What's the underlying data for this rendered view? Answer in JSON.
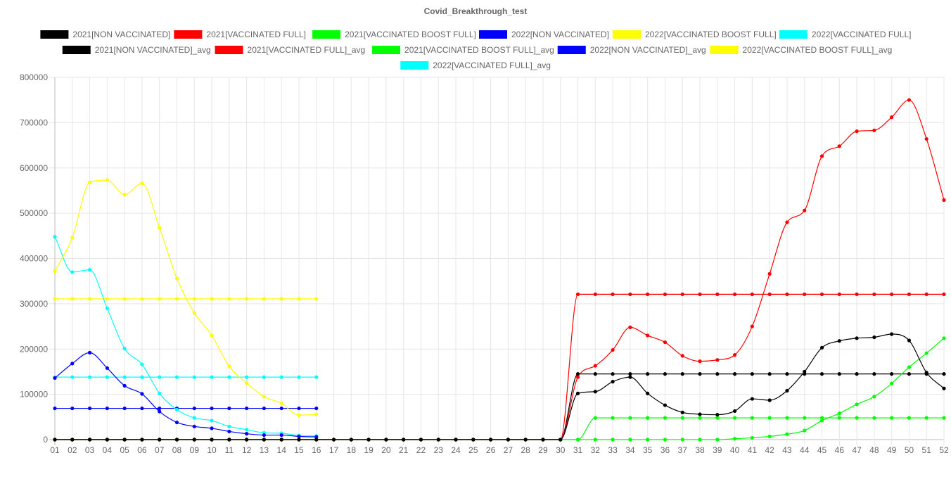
{
  "chart_data": {
    "type": "line",
    "title": "Covid_Breakthrough_test",
    "xlabel": "",
    "ylabel": "",
    "ylim": [
      0,
      800000
    ],
    "y_ticks": [
      "0",
      "100000",
      "200000",
      "300000",
      "400000",
      "500000",
      "600000",
      "700000",
      "800000"
    ],
    "categories": [
      "01",
      "02",
      "03",
      "04",
      "05",
      "06",
      "07",
      "08",
      "09",
      "10",
      "11",
      "12",
      "13",
      "14",
      "15",
      "16",
      "17",
      "18",
      "19",
      "20",
      "21",
      "22",
      "23",
      "24",
      "25",
      "26",
      "27",
      "28",
      "29",
      "30",
      "31",
      "32",
      "33",
      "34",
      "35",
      "36",
      "37",
      "38",
      "39",
      "40",
      "41",
      "42",
      "43",
      "44",
      "45",
      "46",
      "47",
      "48",
      "49",
      "50",
      "51",
      "52"
    ],
    "grid": true,
    "legend_position": "top",
    "series": [
      {
        "name": "2021[NON VACCINATED]",
        "color": "#000000",
        "values": [
          0,
          0,
          0,
          0,
          0,
          0,
          0,
          0,
          0,
          0,
          0,
          0,
          0,
          0,
          0,
          0,
          0,
          0,
          0,
          0,
          0,
          0,
          0,
          0,
          0,
          0,
          0,
          0,
          0,
          0,
          102000,
          106000,
          128000,
          138000,
          102000,
          76000,
          60000,
          56000,
          55000,
          63000,
          90000,
          87000,
          108000,
          150000,
          203000,
          218000,
          224000,
          226000,
          233000,
          219000,
          148000,
          113000
        ]
      },
      {
        "name": "2021[VACCINATED FULL]",
        "color": "#ff0000",
        "values": [
          0,
          0,
          0,
          0,
          0,
          0,
          0,
          0,
          0,
          0,
          0,
          0,
          0,
          0,
          0,
          0,
          0,
          0,
          0,
          0,
          0,
          0,
          0,
          0,
          0,
          0,
          0,
          0,
          0,
          0,
          138000,
          163000,
          198000,
          248000,
          230000,
          215000,
          185000,
          173000,
          176000,
          187000,
          250000,
          366000,
          480000,
          506000,
          626000,
          648000,
          681000,
          683000,
          712000,
          750000,
          664000,
          529000
        ]
      },
      {
        "name": "2021[VACCINATED BOOST FULL]",
        "color": "#00ff00",
        "values": [
          0,
          0,
          0,
          0,
          0,
          0,
          0,
          0,
          0,
          0,
          0,
          0,
          0,
          0,
          0,
          0,
          0,
          0,
          0,
          0,
          0,
          0,
          0,
          0,
          0,
          0,
          0,
          0,
          0,
          0,
          0,
          0,
          0,
          0,
          0,
          0,
          0,
          0,
          0,
          2000,
          4000,
          7000,
          12000,
          20000,
          42000,
          58000,
          78000,
          95000,
          124000,
          160000,
          191000,
          224000
        ]
      },
      {
        "name": "2022[NON VACCINATED]",
        "color": "#0000ff",
        "values": [
          136000,
          168000,
          192000,
          158000,
          119000,
          101000,
          62000,
          38000,
          29000,
          25000,
          18000,
          13000,
          10000,
          10000,
          7000,
          6000,
          null,
          null,
          null,
          null,
          null,
          null,
          null,
          null,
          null,
          null,
          null,
          null,
          null,
          null,
          null,
          null,
          null,
          null,
          null,
          null,
          null,
          null,
          null,
          null,
          null,
          null,
          null,
          null,
          null,
          null,
          null,
          null,
          null,
          null,
          null,
          null
        ]
      },
      {
        "name": "2022[VACCINATED BOOST FULL]",
        "color": "#ffff00",
        "values": [
          372000,
          446000,
          568000,
          573000,
          541000,
          566000,
          468000,
          356000,
          280000,
          230000,
          162000,
          125000,
          95000,
          80000,
          54000,
          56000,
          null,
          null,
          null,
          null,
          null,
          null,
          null,
          null,
          null,
          null,
          null,
          null,
          null,
          null,
          null,
          null,
          null,
          null,
          null,
          null,
          null,
          null,
          null,
          null,
          null,
          null,
          null,
          null,
          null,
          null,
          null,
          null,
          null,
          null,
          null,
          null
        ]
      },
      {
        "name": "2022[VACCINATED FULL]",
        "color": "#00ffff",
        "values": [
          448000,
          370000,
          375000,
          290000,
          201000,
          166000,
          102000,
          66000,
          48000,
          42000,
          29000,
          22000,
          15000,
          14000,
          9000,
          8000,
          null,
          null,
          null,
          null,
          null,
          null,
          null,
          null,
          null,
          null,
          null,
          null,
          null,
          null,
          null,
          null,
          null,
          null,
          null,
          null,
          null,
          null,
          null,
          null,
          null,
          null,
          null,
          null,
          null,
          null,
          null,
          null,
          null,
          null,
          null,
          null
        ]
      },
      {
        "name": "2021[NON VACCINATED]_avg",
        "color": "#000000",
        "values": [
          0,
          0,
          0,
          0,
          0,
          0,
          0,
          0,
          0,
          0,
          0,
          0,
          0,
          0,
          0,
          0,
          0,
          0,
          0,
          0,
          0,
          0,
          0,
          0,
          0,
          0,
          0,
          0,
          0,
          0,
          145000,
          145000,
          145000,
          145000,
          145000,
          145000,
          145000,
          145000,
          145000,
          145000,
          145000,
          145000,
          145000,
          145000,
          145000,
          145000,
          145000,
          145000,
          145000,
          145000,
          145000,
          145000
        ]
      },
      {
        "name": "2021[VACCINATED FULL]_avg",
        "color": "#ff0000",
        "values": [
          0,
          0,
          0,
          0,
          0,
          0,
          0,
          0,
          0,
          0,
          0,
          0,
          0,
          0,
          0,
          0,
          0,
          0,
          0,
          0,
          0,
          0,
          0,
          0,
          0,
          0,
          0,
          0,
          0,
          0,
          321000,
          321000,
          321000,
          321000,
          321000,
          321000,
          321000,
          321000,
          321000,
          321000,
          321000,
          321000,
          321000,
          321000,
          321000,
          321000,
          321000,
          321000,
          321000,
          321000,
          321000,
          321000
        ]
      },
      {
        "name": "2021[VACCINATED BOOST FULL]_avg",
        "color": "#00ff00",
        "values": [
          0,
          0,
          0,
          0,
          0,
          0,
          0,
          0,
          0,
          0,
          0,
          0,
          0,
          0,
          0,
          0,
          0,
          0,
          0,
          0,
          0,
          0,
          0,
          0,
          0,
          0,
          0,
          0,
          0,
          0,
          0,
          48000,
          48000,
          48000,
          48000,
          48000,
          48000,
          48000,
          48000,
          48000,
          48000,
          48000,
          48000,
          48000,
          48000,
          48000,
          48000,
          48000,
          48000,
          48000,
          48000,
          48000
        ]
      },
      {
        "name": "2022[NON VACCINATED]_avg",
        "color": "#0000ff",
        "values": [
          69000,
          69000,
          69000,
          69000,
          69000,
          69000,
          69000,
          69000,
          69000,
          69000,
          69000,
          69000,
          69000,
          69000,
          69000,
          69000,
          null,
          null,
          null,
          null,
          null,
          null,
          null,
          null,
          null,
          null,
          null,
          null,
          null,
          null,
          null,
          null,
          null,
          null,
          null,
          null,
          null,
          null,
          null,
          null,
          null,
          null,
          null,
          null,
          null,
          null,
          null,
          null,
          null,
          null,
          null,
          null
        ]
      },
      {
        "name": "2022[VACCINATED BOOST FULL]_avg",
        "color": "#ffff00",
        "values": [
          311000,
          311000,
          311000,
          311000,
          311000,
          311000,
          311000,
          311000,
          311000,
          311000,
          311000,
          311000,
          311000,
          311000,
          311000,
          311000,
          null,
          null,
          null,
          null,
          null,
          null,
          null,
          null,
          null,
          null,
          null,
          null,
          null,
          null,
          null,
          null,
          null,
          null,
          null,
          null,
          null,
          null,
          null,
          null,
          null,
          null,
          null,
          null,
          null,
          null,
          null,
          null,
          null,
          null,
          null,
          null
        ]
      },
      {
        "name": "2022[VACCINATED FULL]_avg",
        "color": "#00ffff",
        "values": [
          138000,
          138000,
          138000,
          138000,
          138000,
          138000,
          138000,
          138000,
          138000,
          138000,
          138000,
          138000,
          138000,
          138000,
          138000,
          138000,
          null,
          null,
          null,
          null,
          null,
          null,
          null,
          null,
          null,
          null,
          null,
          null,
          null,
          null,
          null,
          null,
          null,
          null,
          null,
          null,
          null,
          null,
          null,
          null,
          null,
          null,
          null,
          null,
          null,
          null,
          null,
          null,
          null,
          null,
          null,
          null
        ]
      }
    ]
  }
}
